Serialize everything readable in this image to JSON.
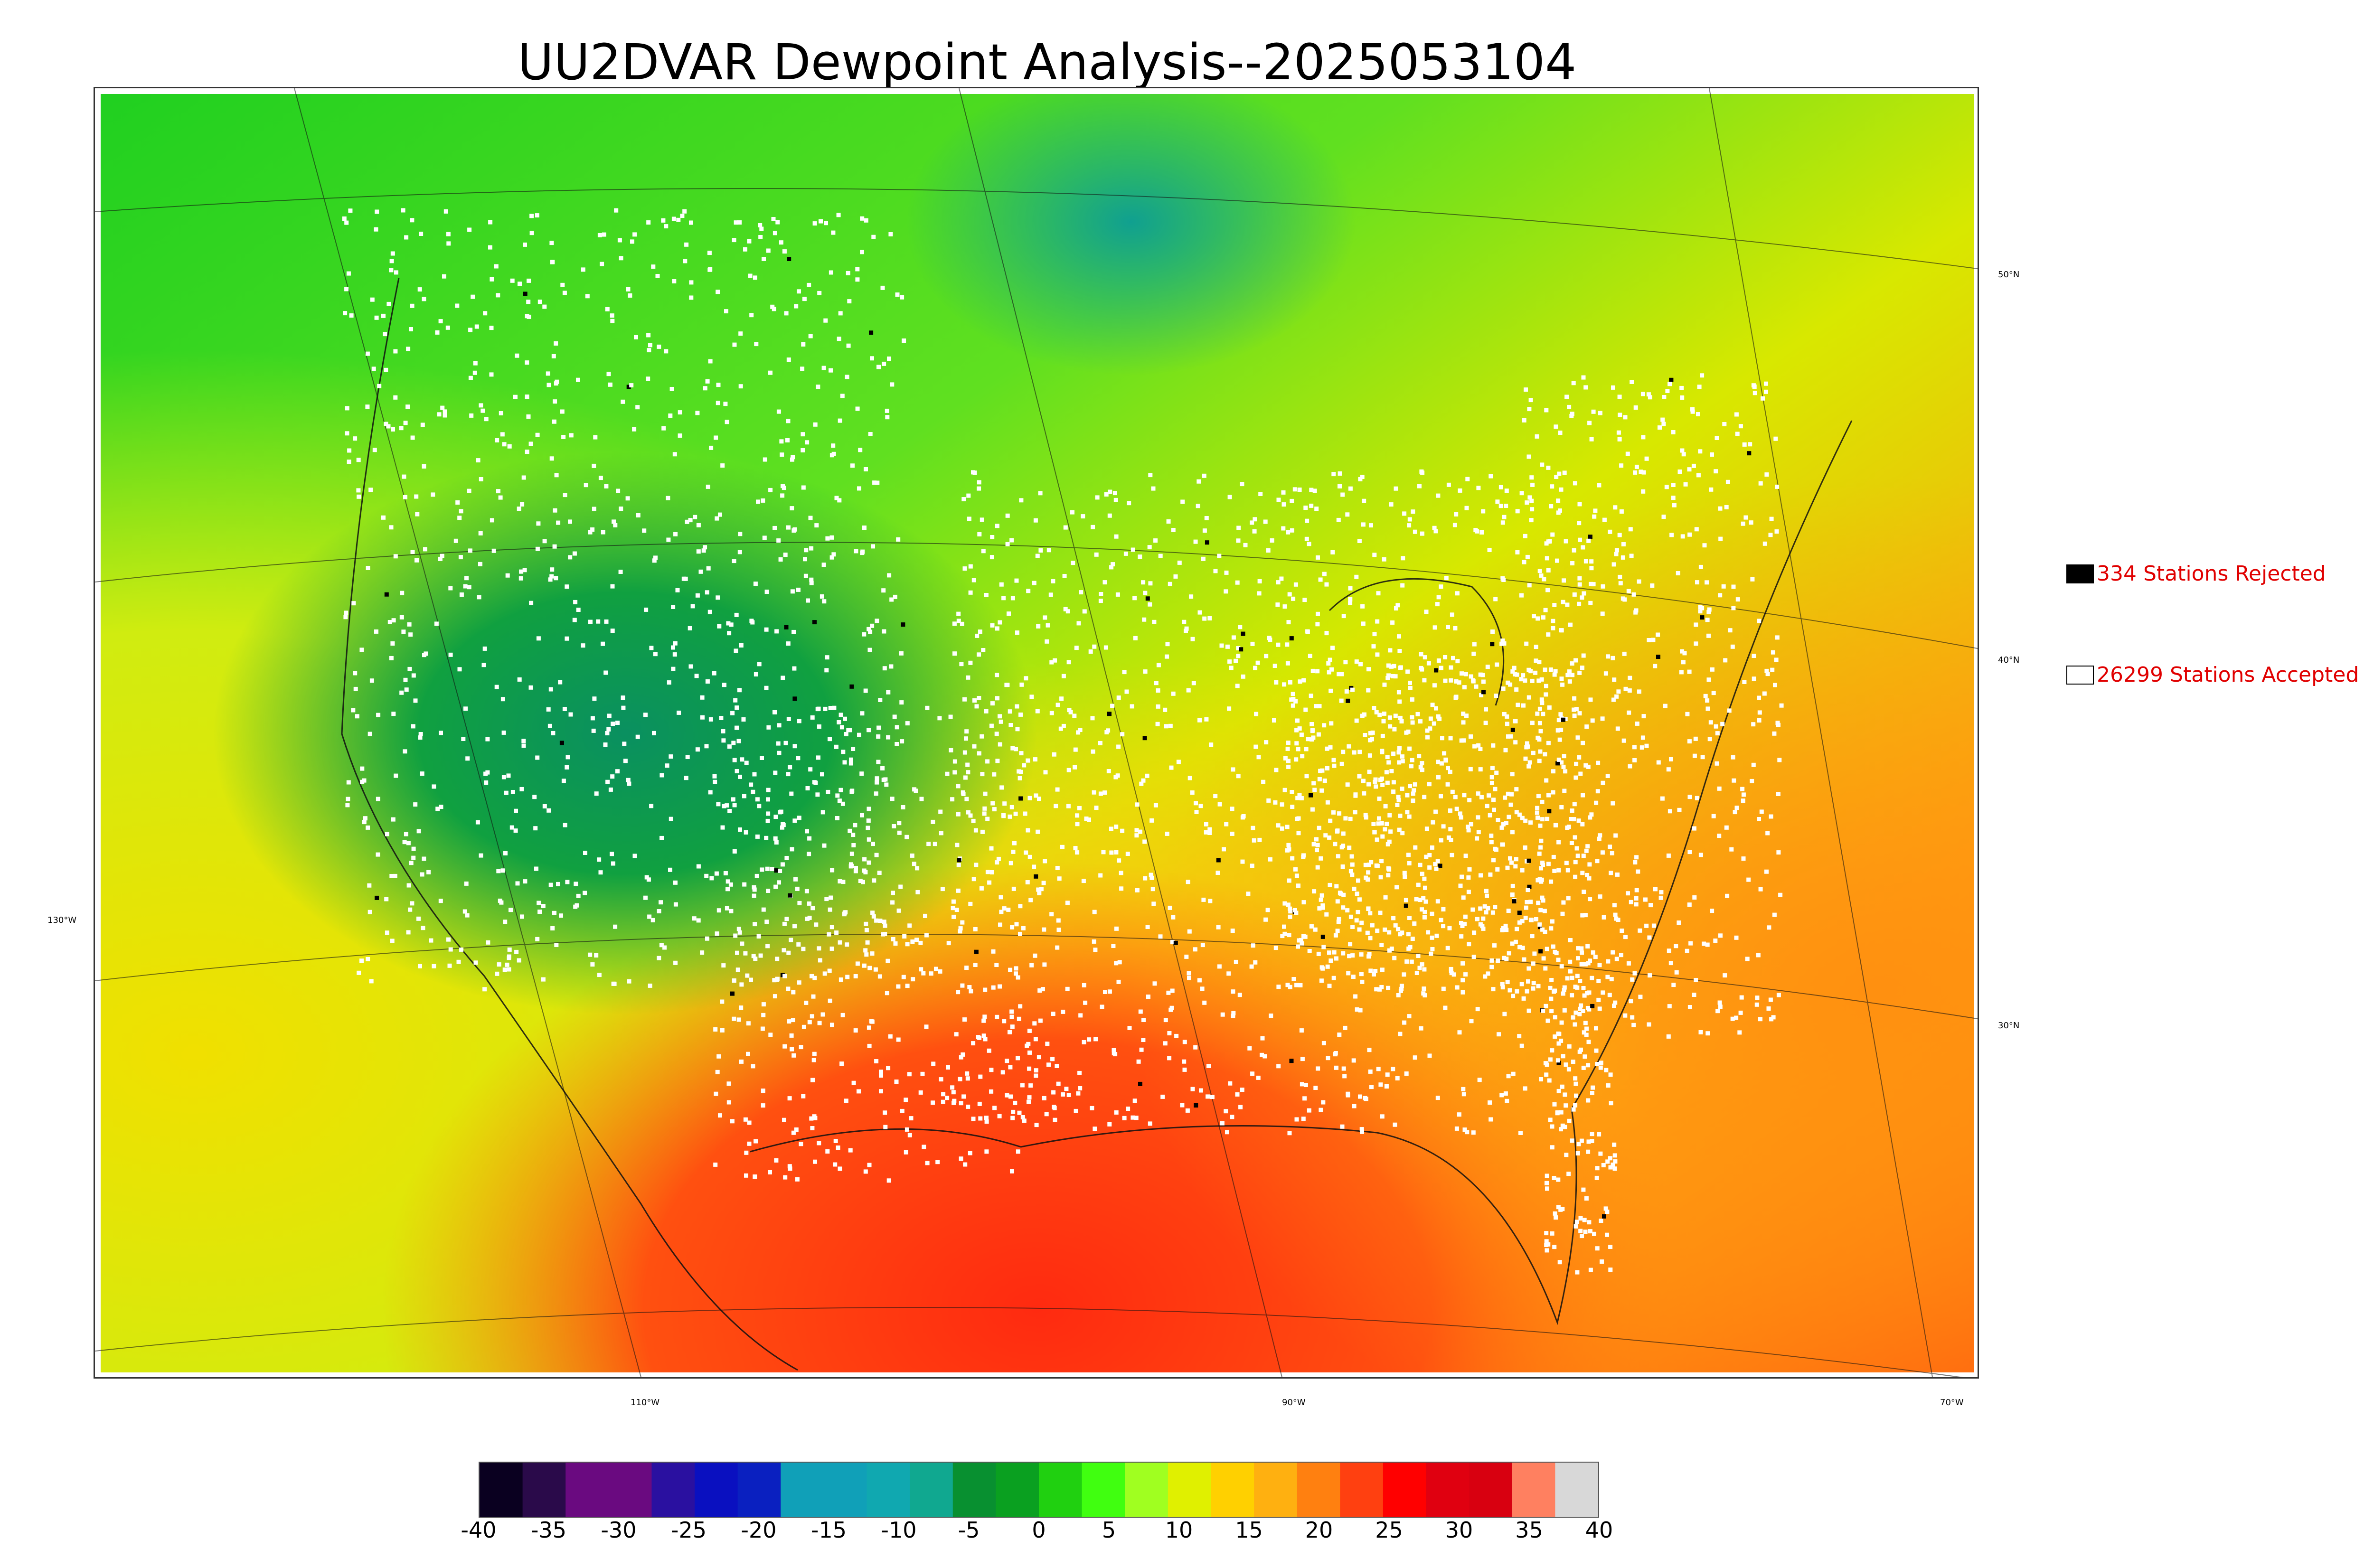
{
  "title": "UU2DVAR Dewpoint Analysis--2025053104",
  "map": {
    "lon_labels": [
      "130°W",
      "110°W",
      "90°W",
      "70°W"
    ],
    "lat_labels": [
      "50°N",
      "40°N",
      "30°N"
    ]
  },
  "legend": {
    "rejected": {
      "label": "334 Stations Rejected",
      "color": "#000000"
    },
    "accepted": {
      "label": "26299 Stations Accepted",
      "color": "#ffffff"
    }
  },
  "colorbar": {
    "min": -40,
    "max": 40,
    "ticks": [
      "-40",
      "-35",
      "-30",
      "-25",
      "-20",
      "-15",
      "-10",
      "-5",
      "0",
      "5",
      "10",
      "15",
      "20",
      "25",
      "30",
      "35",
      "40"
    ],
    "colors": [
      "#0a0020",
      "#2a0a4a",
      "#6a0a80",
      "#6a0a80",
      "#2a10a0",
      "#0a10c0",
      "#0a20c0",
      "#10a0b8",
      "#10a0b8",
      "#10a8b0",
      "#10a890",
      "#089030",
      "#0aa020",
      "#20d010",
      "#40ff10",
      "#a0ff20",
      "#e0f000",
      "#ffd000",
      "#ffb010",
      "#ff8010",
      "#ff4010",
      "#ff0000",
      "#e00010",
      "#d80010",
      "#ff8060",
      "#d8d8d8"
    ]
  }
}
